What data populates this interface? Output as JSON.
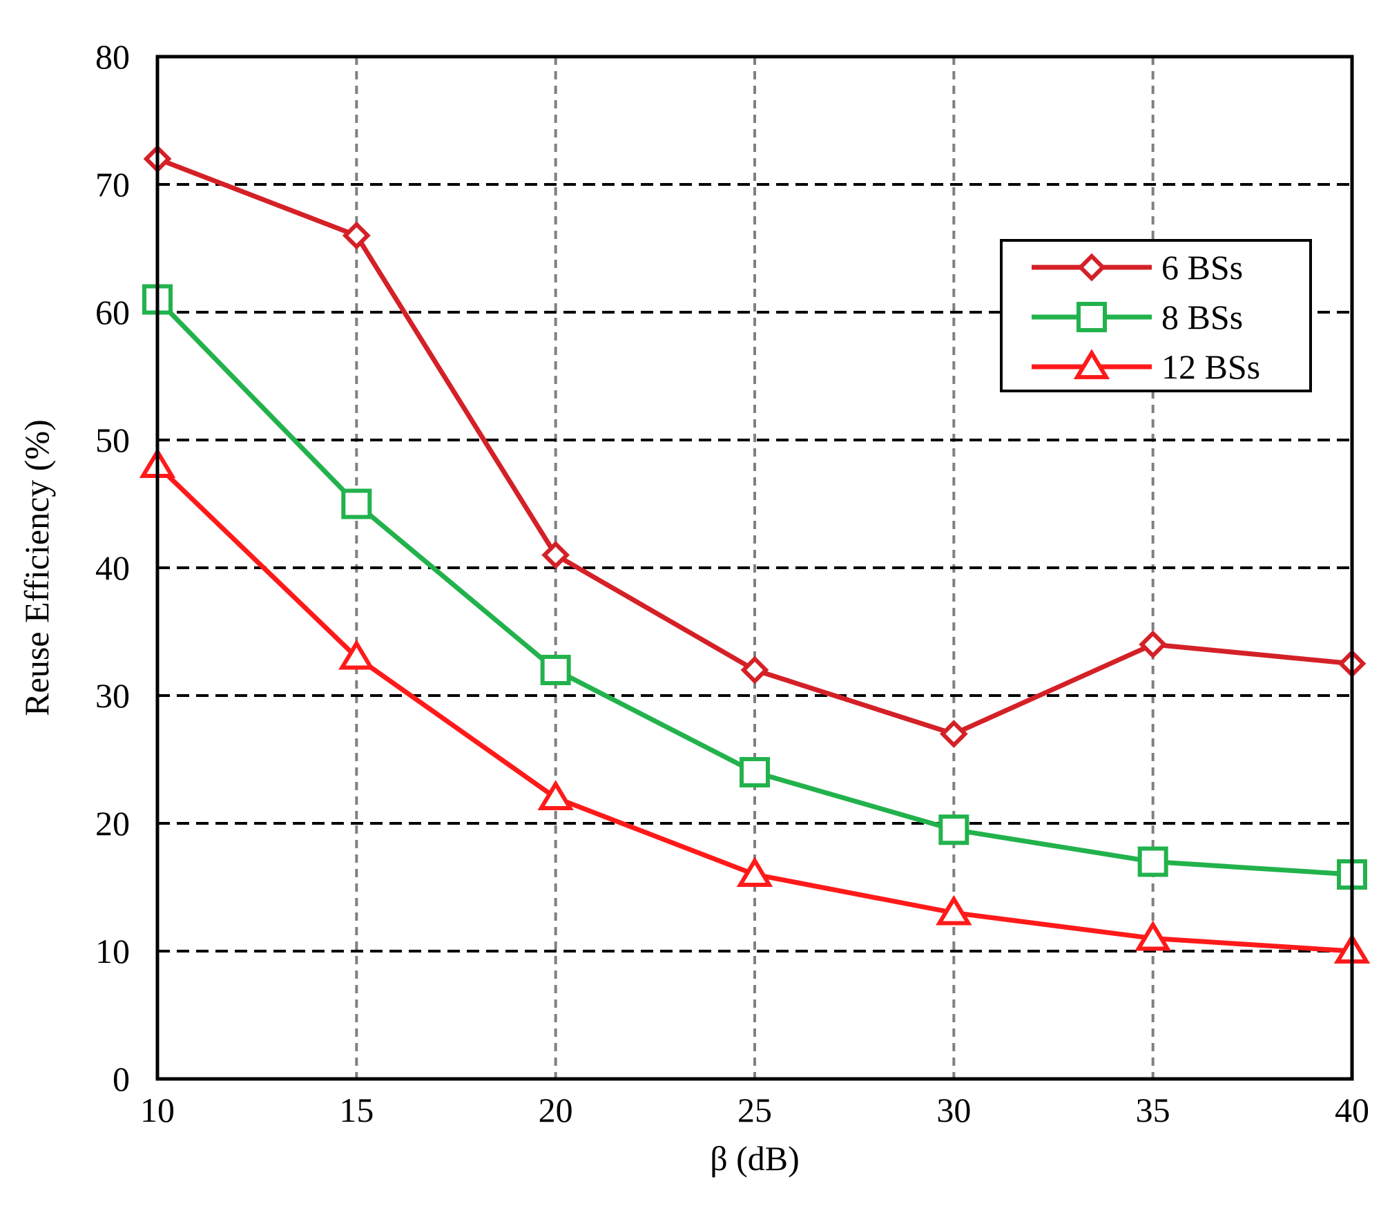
{
  "chart_data": {
    "type": "line",
    "title": "",
    "xlabel": "β (dB)",
    "ylabel": "Reuse Efficiency (%)",
    "x": [
      10,
      15,
      20,
      25,
      30,
      35,
      40
    ],
    "xlim": [
      10,
      40
    ],
    "ylim": [
      0,
      80
    ],
    "xticks": [
      10,
      15,
      20,
      25,
      30,
      35,
      40
    ],
    "yticks": [
      0,
      10,
      20,
      30,
      40,
      50,
      60,
      70,
      80
    ],
    "grid": true,
    "grid_style": "dashed",
    "legend_position": "top-right",
    "series": [
      {
        "name": "6 BSs",
        "marker": "diamond",
        "color": "#d42027",
        "values": [
          72,
          66,
          41,
          32,
          27,
          34,
          32.5
        ]
      },
      {
        "name": "8 BSs",
        "marker": "square",
        "color": "#22b24c",
        "values": [
          61,
          45,
          32,
          24,
          19.5,
          17,
          16
        ]
      },
      {
        "name": "12 BSs",
        "marker": "triangle",
        "color": "#ff1a1a",
        "values": [
          48,
          33,
          22,
          16,
          13,
          11,
          10
        ]
      }
    ]
  }
}
